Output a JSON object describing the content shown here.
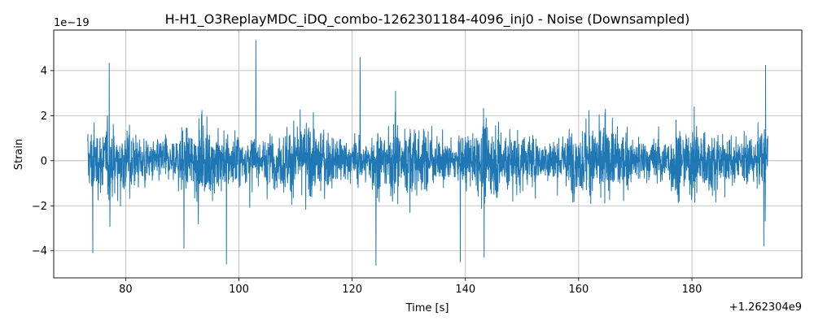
{
  "chart_data": {
    "type": "line",
    "title": "H-H1_O3ReplayMDC_iDQ_combo-1262301184-4096_inj0 - Noise (Downsampled)",
    "xlabel": "Time [s]",
    "ylabel": "Strain",
    "x_offset_label": "+1.262304e9",
    "y_scale_label": "1e−19",
    "x_range": [
      73.3,
      193.4
    ],
    "xlim": [
      67.3,
      199.4
    ],
    "ylim": [
      -5.2,
      5.8
    ],
    "x_ticks": [
      80,
      100,
      120,
      140,
      160,
      180
    ],
    "x_tick_labels": [
      "80",
      "100",
      "120",
      "140",
      "160",
      "180"
    ],
    "y_ticks": [
      -4,
      -2,
      0,
      2,
      4
    ],
    "y_tick_labels": [
      "−4",
      "−2",
      "0",
      "2",
      "4"
    ],
    "grid": true,
    "series": [
      {
        "color": "#1f77b4",
        "note_peaks": [
          {
            "x": 77.1,
            "y": 4.35
          },
          {
            "x": 103.0,
            "y": 5.35
          },
          {
            "x": 121.4,
            "y": 4.6
          },
          {
            "x": 124.2,
            "y": -4.65
          },
          {
            "x": 97.8,
            "y": -4.6
          },
          {
            "x": 139.1,
            "y": -4.5
          },
          {
            "x": 143.3,
            "y": -4.3
          },
          {
            "x": 74.2,
            "y": -4.1
          },
          {
            "x": 90.3,
            "y": -3.9
          },
          {
            "x": 193.0,
            "y": 4.25
          },
          {
            "x": 192.7,
            "y": -3.8
          }
        ]
      }
    ]
  }
}
